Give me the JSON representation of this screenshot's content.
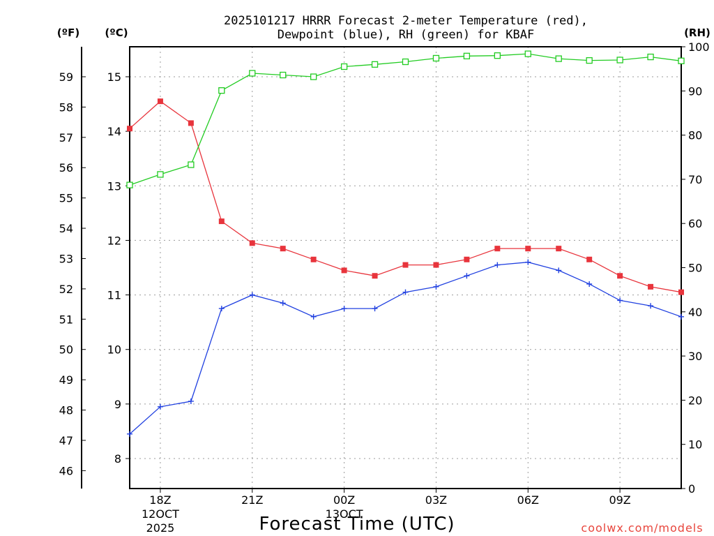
{
  "chart_data": {
    "type": "line",
    "title_line1": "2025101217 HRRR Forecast 2-meter Temperature (red),",
    "title_line2": "Dewpoint (blue), RH (green) for KBAF",
    "xlabel": "Forecast Time (UTC)",
    "credit": "coolwx.com/models",
    "units": {
      "f": "(ºF)",
      "c": "(ºC)",
      "rh": "(RH)"
    },
    "x_hours": [
      17,
      18,
      19,
      20,
      21,
      22,
      23,
      24,
      25,
      26,
      27,
      28,
      29,
      30,
      31,
      32,
      33,
      34,
      35
    ],
    "x_ticks": [
      {
        "hour": 18,
        "label": "18Z",
        "sub1": "12OCT",
        "sub2": "2025"
      },
      {
        "hour": 21,
        "label": "21Z",
        "sub1": "",
        "sub2": ""
      },
      {
        "hour": 24,
        "label": "00Z",
        "sub1": "13OCT",
        "sub2": ""
      },
      {
        "hour": 27,
        "label": "03Z",
        "sub1": "",
        "sub2": ""
      },
      {
        "hour": 30,
        "label": "06Z",
        "sub1": "",
        "sub2": ""
      },
      {
        "hour": 33,
        "label": "09Z",
        "sub1": "",
        "sub2": ""
      }
    ],
    "x_range": [
      17,
      35
    ],
    "c_range": [
      7.45,
      15.55
    ],
    "c_ticks": [
      8,
      9,
      10,
      11,
      12,
      13,
      14,
      15
    ],
    "f_ticks": [
      46,
      47,
      48,
      49,
      50,
      51,
      52,
      53,
      54,
      55,
      56,
      57,
      58,
      59
    ],
    "rh_range": [
      0,
      100
    ],
    "rh_ticks": [
      0,
      10,
      20,
      30,
      40,
      50,
      60,
      70,
      80,
      90,
      100
    ],
    "grid": true,
    "series": [
      {
        "name": "Temperature",
        "axis": "c",
        "color": "#e8343c",
        "marker": "filled-square",
        "values": [
          14.05,
          14.55,
          14.15,
          12.35,
          11.95,
          11.85,
          11.65,
          11.45,
          11.35,
          11.55,
          11.55,
          11.65,
          11.85,
          11.85,
          11.85,
          11.65,
          11.35,
          11.15,
          11.05
        ]
      },
      {
        "name": "Dewpoint",
        "axis": "c",
        "color": "#2040e0",
        "marker": "plus",
        "values": [
          8.45,
          8.95,
          9.05,
          10.75,
          11.0,
          10.85,
          10.6,
          10.75,
          10.75,
          11.05,
          11.15,
          11.35,
          11.55,
          11.6,
          11.45,
          11.2,
          10.9,
          10.8,
          10.6
        ]
      },
      {
        "name": "RH",
        "axis": "rh",
        "color": "#22cc22",
        "marker": "open-square",
        "values": [
          68.7,
          71.1,
          73.3,
          90.1,
          94.0,
          93.6,
          93.2,
          95.5,
          96.0,
          96.6,
          97.4,
          97.9,
          98.0,
          98.4,
          97.3,
          96.9,
          97.0,
          97.7,
          96.8
        ]
      }
    ]
  }
}
